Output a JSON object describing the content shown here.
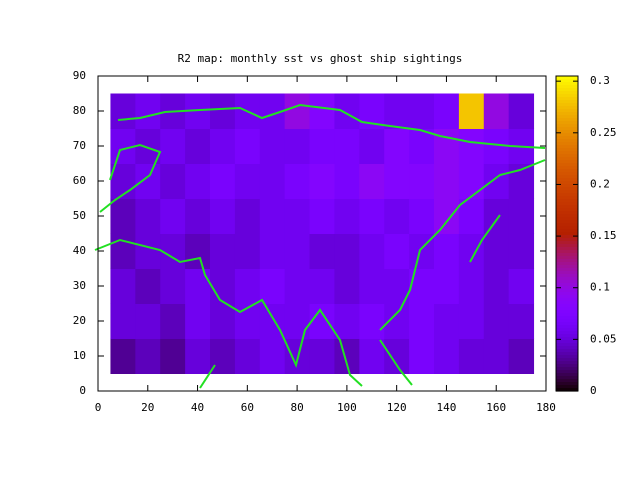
{
  "chart_data": {
    "type": "heatmap",
    "title": "R2 map: monthly sst vs ghost ship sightings",
    "x": [
      10,
      20,
      30,
      40,
      50,
      60,
      70,
      80,
      90,
      100,
      110,
      120,
      130,
      140,
      150,
      160,
      170
    ],
    "y": [
      10,
      20,
      30,
      40,
      50,
      60,
      70,
      80
    ],
    "z": [
      [
        0.03,
        0.04,
        0.03,
        0.05,
        0.04,
        0.05,
        0.06,
        0.05,
        0.05,
        0.04,
        0.06,
        0.05,
        0.07,
        0.06,
        0.05,
        0.05,
        0.04
      ],
      [
        0.05,
        0.05,
        0.04,
        0.06,
        0.05,
        0.06,
        0.06,
        0.06,
        0.07,
        0.06,
        0.07,
        0.06,
        0.07,
        0.06,
        0.06,
        0.05,
        0.05
      ],
      [
        0.05,
        0.04,
        0.05,
        0.06,
        0.05,
        0.06,
        0.07,
        0.06,
        0.06,
        0.05,
        0.06,
        0.06,
        0.07,
        0.07,
        0.06,
        0.05,
        0.06
      ],
      [
        0.04,
        0.05,
        0.05,
        0.04,
        0.05,
        0.05,
        0.06,
        0.06,
        0.05,
        0.05,
        0.06,
        0.07,
        0.06,
        0.07,
        0.06,
        0.05,
        0.05
      ],
      [
        0.04,
        0.05,
        0.06,
        0.05,
        0.06,
        0.05,
        0.06,
        0.06,
        0.07,
        0.06,
        0.07,
        0.06,
        0.07,
        0.09,
        0.07,
        0.05,
        0.05
      ],
      [
        0.05,
        0.06,
        0.05,
        0.06,
        0.07,
        0.06,
        0.06,
        0.07,
        0.08,
        0.07,
        0.09,
        0.08,
        0.08,
        0.09,
        0.08,
        0.06,
        0.05
      ],
      [
        0.06,
        0.05,
        0.06,
        0.05,
        0.06,
        0.07,
        0.06,
        0.06,
        0.07,
        0.07,
        0.06,
        0.08,
        0.07,
        0.09,
        0.08,
        0.07,
        0.06
      ],
      [
        0.05,
        0.06,
        0.05,
        0.06,
        0.05,
        0.06,
        0.06,
        0.1,
        0.08,
        0.06,
        0.07,
        0.06,
        0.06,
        0.07,
        0.28,
        0.1,
        0.05
      ]
    ],
    "xlim": [
      0,
      180
    ],
    "xticks": [
      0,
      20,
      40,
      60,
      80,
      100,
      120,
      140,
      160,
      180
    ],
    "ylim": [
      0,
      90
    ],
    "yticks": [
      0,
      10,
      20,
      30,
      40,
      50,
      60,
      70,
      80,
      90
    ],
    "cblim": [
      0,
      0.305
    ],
    "cbticks": [
      0,
      0.05,
      0.1,
      0.15,
      0.2,
      0.25,
      0.3
    ],
    "palette": "rgbformulae-7-5-15"
  }
}
